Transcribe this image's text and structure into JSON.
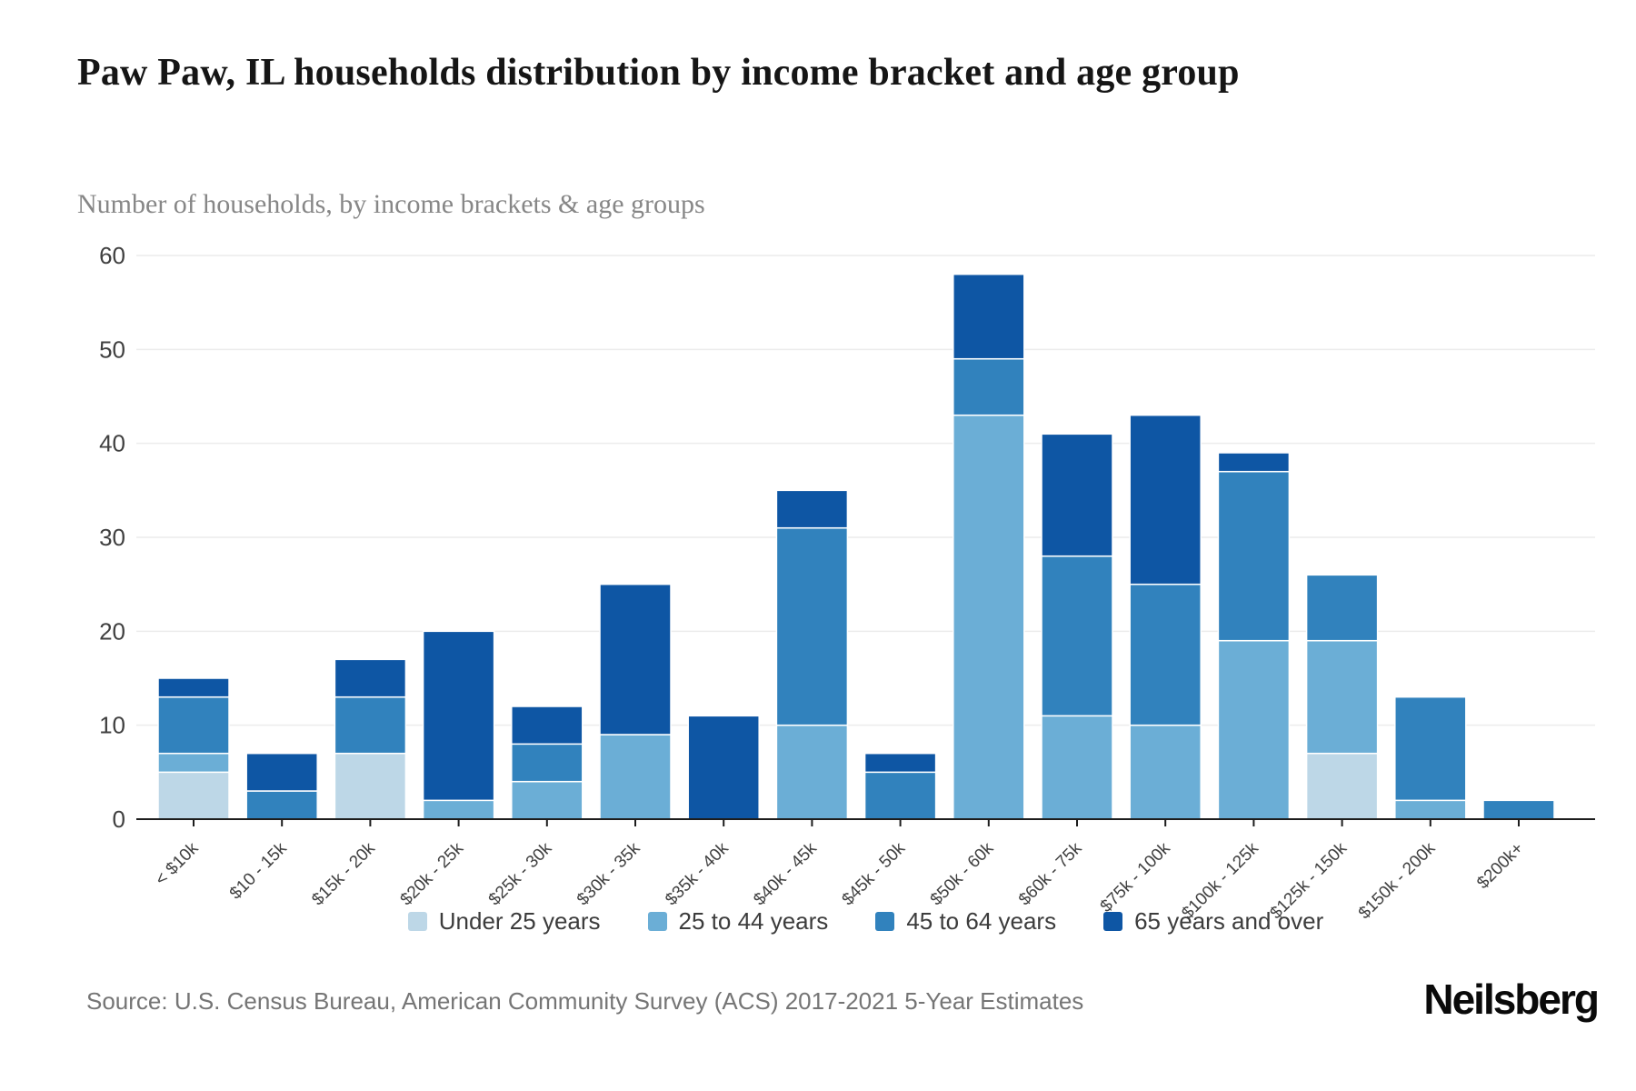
{
  "header": {
    "title": "Paw Paw, IL households distribution by income bracket and age group",
    "subtitle": "Number of households, by income brackets & age groups"
  },
  "footer": {
    "source": "Source: U.S. Census Bureau, American Community Survey (ACS) 2017-2021 5-Year Estimates",
    "brand": "Neilsberg"
  },
  "chart_data": {
    "type": "bar",
    "stacked": true,
    "title": "Paw Paw, IL households distribution by income bracket and age group",
    "subtitle": "Number of households, by income brackets & age groups",
    "xlabel": "",
    "ylabel": "",
    "ylim": [
      0,
      60
    ],
    "yticks": [
      0,
      10,
      20,
      30,
      40,
      50,
      60
    ],
    "grid": "horizontal",
    "legend_position": "bottom",
    "categories": [
      "< $10k",
      "$10 - 15k",
      "$15k - 20k",
      "$20k - 25k",
      "$25k - 30k",
      "$30k - 35k",
      "$35k - 40k",
      "$40k - 45k",
      "$45k - 50k",
      "$50k - 60k",
      "$60k - 75k",
      "$75k - 100k",
      "$100k - 125k",
      "$125k - 150k",
      "$150k - 200k",
      "$200k+"
    ],
    "series": [
      {
        "name": "Under 25 years",
        "color": "#bdd7e7",
        "values": [
          5,
          0,
          7,
          0,
          0,
          0,
          0,
          0,
          0,
          0,
          0,
          0,
          0,
          7,
          0,
          0
        ]
      },
      {
        "name": "25 to 44 years",
        "color": "#6baed6",
        "values": [
          2,
          0,
          0,
          2,
          4,
          9,
          0,
          10,
          0,
          43,
          11,
          10,
          19,
          12,
          2,
          0
        ]
      },
      {
        "name": "45 to 64 years",
        "color": "#3182bd",
        "values": [
          6,
          3,
          6,
          0,
          4,
          0,
          0,
          21,
          5,
          6,
          17,
          15,
          18,
          7,
          11,
          2
        ]
      },
      {
        "name": "65 years and over",
        "color": "#0e56a4",
        "values": [
          2,
          4,
          4,
          18,
          4,
          16,
          11,
          4,
          2,
          9,
          13,
          18,
          2,
          0,
          0,
          0
        ]
      }
    ],
    "totals": [
      15,
      7,
      17,
      20,
      12,
      25,
      11,
      35,
      7,
      58,
      41,
      43,
      39,
      26,
      13,
      2
    ],
    "colors": {
      "axis": "#1d1d1d",
      "gridline": "#ececec",
      "tick_label": "#404040",
      "separator": "#ffffff"
    }
  }
}
